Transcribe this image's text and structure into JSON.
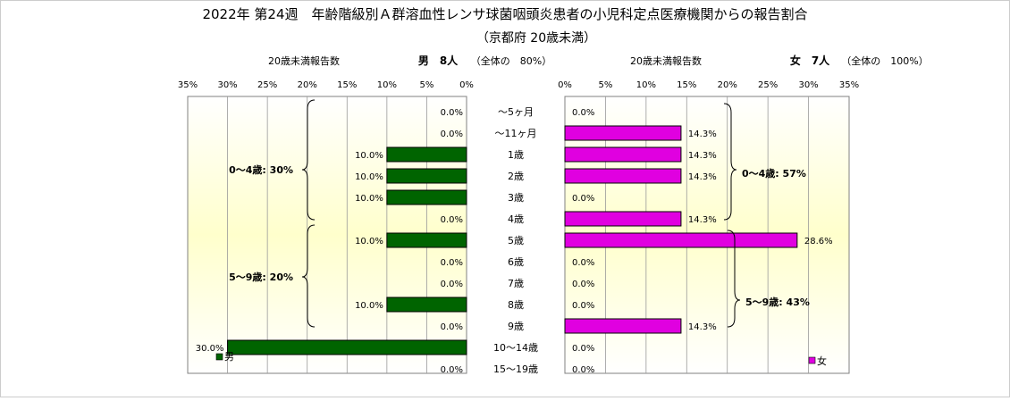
{
  "title": "2022年 第24週　年齢階級別Ａ群溶血性レンサ球菌咽頭炎患者の小児科定点医療機関からの報告割合",
  "subtitle": "（京都府 20歳未満）",
  "left_panel": {
    "header_label": "20歳未満報告数",
    "header_summary": "男　8人",
    "header_note": "（全体の　80%）",
    "legend": "男",
    "color": "#006400",
    "groups": [
      "0～4歳: 30%",
      "5～9歳: 20%"
    ]
  },
  "right_panel": {
    "header_label": "20歳未満報告数",
    "header_summary": "女　7人",
    "header_note": "（全体の　100%）",
    "legend": "女",
    "color": "#e000e0",
    "groups": [
      "0～4歳: 57%",
      "5～9歳: 43%"
    ]
  },
  "chart_data": {
    "type": "bar",
    "orientation": "horizontal",
    "layout": "butterfly",
    "categories": [
      "～5ヶ月",
      "～11ヶ月",
      "1歳",
      "2歳",
      "3歳",
      "4歳",
      "5歳",
      "6歳",
      "7歳",
      "8歳",
      "9歳",
      "10～14歳",
      "15～19歳"
    ],
    "series": [
      {
        "name": "男",
        "values": [
          0.0,
          0.0,
          10.0,
          10.0,
          10.0,
          0.0,
          10.0,
          0.0,
          0.0,
          10.0,
          0.0,
          30.0,
          0.0
        ],
        "labels": [
          "0.0%",
          "0.0%",
          "10.0%",
          "10.0%",
          "10.0%",
          "0.0%",
          "10.0%",
          "0.0%",
          "0.0%",
          "10.0%",
          "0.0%",
          "30.0%",
          "0.0%"
        ]
      },
      {
        "name": "女",
        "values": [
          0.0,
          14.3,
          14.3,
          14.3,
          0.0,
          14.3,
          28.6,
          0.0,
          0.0,
          0.0,
          14.3,
          0.0,
          0.0
        ],
        "labels": [
          "0.0%",
          "14.3%",
          "14.3%",
          "14.3%",
          "0.0%",
          "14.3%",
          "28.6%",
          "0.0%",
          "0.0%",
          "0.0%",
          "14.3%",
          "0.0%",
          "0.0%"
        ]
      }
    ],
    "xlim": [
      0,
      35
    ],
    "x_ticks": [
      "0%",
      "5%",
      "10%",
      "15%",
      "20%",
      "25%",
      "30%",
      "35%"
    ],
    "grid": true,
    "legend_position": "bottom-left / bottom-right"
  }
}
